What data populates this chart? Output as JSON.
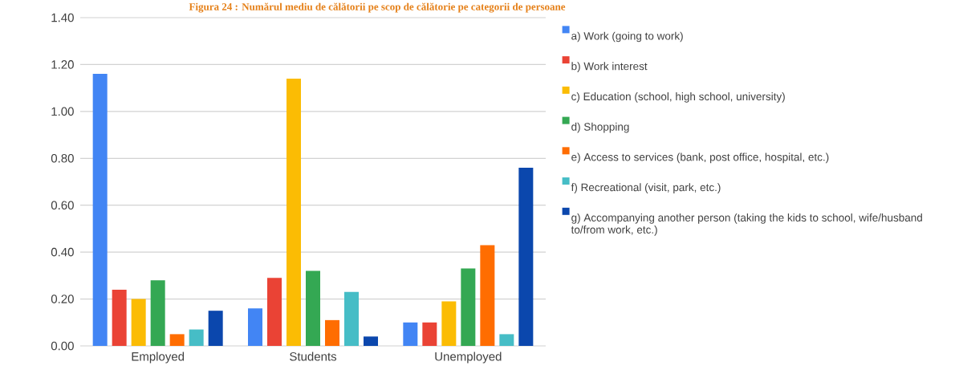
{
  "chart_data": {
    "type": "bar",
    "title": "Figura 24 : Numărul mediu de călătorii pe scop de călătorie pe categorii de persoane",
    "categories": [
      "Employed",
      "Students",
      "Unemployed"
    ],
    "series": [
      {
        "name": "a) Work (going to work)",
        "color": "#4285f4",
        "values": [
          1.16,
          0.16,
          0.1
        ]
      },
      {
        "name": "b) Work interest",
        "color": "#ea4335",
        "values": [
          0.24,
          0.29,
          0.1
        ]
      },
      {
        "name": "c) Education (school, high school, university)",
        "color": "#fbbc04",
        "values": [
          0.2,
          1.14,
          0.19
        ]
      },
      {
        "name": "d) Shopping",
        "color": "#34a853",
        "values": [
          0.28,
          0.32,
          0.33
        ]
      },
      {
        "name": "e) Access to services (bank, post office, hospital, etc.)",
        "color": "#ff6d01",
        "values": [
          0.05,
          0.11,
          0.43
        ]
      },
      {
        "name": "f) Recreational (visit, park, etc.)",
        "color": "#46bdc6",
        "values": [
          0.07,
          0.23,
          0.05
        ]
      },
      {
        "name": "g) Accompanying another person (taking the kids to school, wife/husband to/from work, etc.)",
        "color": "#0b47ad",
        "values": [
          0.15,
          0.04,
          0.76
        ]
      }
    ],
    "ylim": [
      0,
      1.4
    ],
    "yticks": [
      {
        "value": 0,
        "label": "0.00"
      },
      {
        "value": 0.2,
        "label": "0.20"
      },
      {
        "value": 0.4,
        "label": "0.40"
      },
      {
        "value": 0.6,
        "label": "0.60"
      },
      {
        "value": 0.8,
        "label": "0.80"
      },
      {
        "value": 1.0,
        "label": "1.00"
      },
      {
        "value": 1.2,
        "label": "1.20"
      },
      {
        "value": 1.4,
        "label": "1.40"
      }
    ],
    "grid": "y",
    "legend": "right"
  }
}
